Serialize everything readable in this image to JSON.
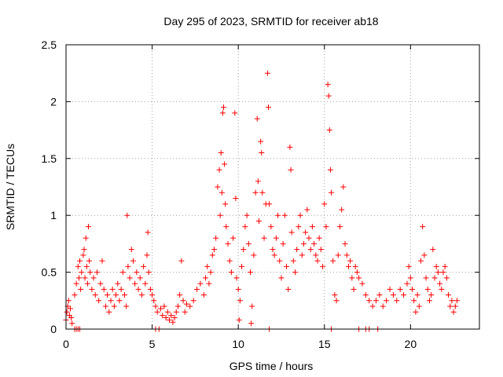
{
  "chart_data": {
    "type": "scatter",
    "title": "Day 295 of 2023, SRMTID for receiver ab18",
    "xlabel": "GPS time / hours",
    "ylabel": "SRMTID / TECUs",
    "xlim": [
      0,
      24
    ],
    "ylim": [
      0,
      2.5
    ],
    "xticks": [
      0,
      5,
      10,
      15,
      20
    ],
    "yticks": [
      0,
      0.5,
      1,
      1.5,
      2,
      2.5
    ],
    "xtick_labels": [
      "0",
      "5",
      "10",
      "15",
      "20"
    ],
    "ytick_labels": [
      "0",
      "0.5",
      "1",
      "1.5",
      "2",
      "2.5"
    ],
    "grid": true,
    "marker": "+",
    "series": [
      {
        "name": "ab18",
        "color": "#ff0000",
        "points": [
          [
            0.0,
            0.08
          ],
          [
            0.05,
            0.15
          ],
          [
            0.1,
            0.2
          ],
          [
            0.15,
            0.25
          ],
          [
            0.2,
            0.12
          ],
          [
            0.25,
            0.18
          ],
          [
            0.3,
            0.1
          ],
          [
            0.35,
            0.05
          ],
          [
            0.5,
            0.3
          ],
          [
            0.6,
            0.4
          ],
          [
            0.7,
            0.55
          ],
          [
            0.75,
            0.45
          ],
          [
            0.8,
            0.6
          ],
          [
            0.85,
            0.35
          ],
          [
            0.9,
            0.5
          ],
          [
            1.0,
            0.65
          ],
          [
            1.05,
            0.7
          ],
          [
            1.1,
            0.45
          ],
          [
            1.15,
            0.8
          ],
          [
            1.2,
            0.55
          ],
          [
            1.25,
            0.4
          ],
          [
            1.3,
            0.9
          ],
          [
            1.35,
            0.6
          ],
          [
            1.4,
            0.5
          ],
          [
            1.5,
            0.35
          ],
          [
            1.6,
            0.45
          ],
          [
            1.7,
            0.3
          ],
          [
            1.8,
            0.5
          ],
          [
            1.9,
            0.25
          ],
          [
            2.0,
            0.4
          ],
          [
            2.1,
            0.6
          ],
          [
            2.2,
            0.35
          ],
          [
            2.3,
            0.2
          ],
          [
            2.4,
            0.3
          ],
          [
            2.5,
            0.15
          ],
          [
            2.6,
            0.25
          ],
          [
            2.7,
            0.35
          ],
          [
            2.8,
            0.2
          ],
          [
            2.9,
            0.3
          ],
          [
            3.0,
            0.4
          ],
          [
            3.1,
            0.25
          ],
          [
            3.2,
            0.35
          ],
          [
            3.3,
            0.5
          ],
          [
            3.4,
            0.3
          ],
          [
            3.5,
            0.2
          ],
          [
            3.55,
            1.0
          ],
          [
            3.6,
            0.55
          ],
          [
            3.7,
            0.45
          ],
          [
            3.8,
            0.7
          ],
          [
            3.9,
            0.6
          ],
          [
            4.0,
            0.4
          ],
          [
            4.1,
            0.5
          ],
          [
            4.2,
            0.35
          ],
          [
            4.3,
            0.45
          ],
          [
            4.4,
            0.3
          ],
          [
            4.5,
            0.55
          ],
          [
            4.6,
            0.4
          ],
          [
            4.7,
            0.65
          ],
          [
            4.75,
            0.85
          ],
          [
            4.8,
            0.5
          ],
          [
            4.9,
            0.35
          ],
          [
            5.0,
            0.3
          ],
          [
            5.1,
            0.25
          ],
          [
            5.2,
            0.2
          ],
          [
            5.3,
            0.15
          ],
          [
            5.5,
            0.18
          ],
          [
            5.6,
            0.12
          ],
          [
            5.7,
            0.2
          ],
          [
            5.8,
            0.1
          ],
          [
            5.9,
            0.15
          ],
          [
            6.0,
            0.08
          ],
          [
            6.1,
            0.12
          ],
          [
            6.2,
            0.06
          ],
          [
            6.3,
            0.1
          ],
          [
            6.4,
            0.15
          ],
          [
            6.5,
            0.2
          ],
          [
            6.6,
            0.3
          ],
          [
            6.7,
            0.6
          ],
          [
            6.8,
            0.25
          ],
          [
            6.9,
            0.15
          ],
          [
            7.0,
            0.22
          ],
          [
            7.2,
            0.2
          ],
          [
            7.4,
            0.25
          ],
          [
            7.6,
            0.35
          ],
          [
            7.8,
            0.4
          ],
          [
            8.0,
            0.3
          ],
          [
            8.1,
            0.45
          ],
          [
            8.2,
            0.55
          ],
          [
            8.3,
            0.4
          ],
          [
            8.4,
            0.5
          ],
          [
            8.5,
            0.65
          ],
          [
            8.6,
            0.7
          ],
          [
            8.7,
            0.8
          ],
          [
            8.8,
            1.25
          ],
          [
            8.9,
            1.4
          ],
          [
            8.95,
            1.0
          ],
          [
            9.0,
            1.55
          ],
          [
            9.05,
            1.2
          ],
          [
            9.1,
            1.9
          ],
          [
            9.15,
            1.95
          ],
          [
            9.2,
            1.45
          ],
          [
            9.25,
            1.1
          ],
          [
            9.3,
            0.9
          ],
          [
            9.4,
            0.75
          ],
          [
            9.5,
            0.6
          ],
          [
            9.6,
            0.5
          ],
          [
            9.7,
            0.8
          ],
          [
            9.8,
            1.9
          ],
          [
            9.85,
            1.15
          ],
          [
            9.9,
            0.45
          ],
          [
            10.0,
            0.35
          ],
          [
            10.05,
            0.08
          ],
          [
            10.1,
            0.25
          ],
          [
            10.2,
            0.55
          ],
          [
            10.3,
            0.7
          ],
          [
            10.4,
            0.9
          ],
          [
            10.5,
            1.0
          ],
          [
            10.6,
            0.75
          ],
          [
            10.7,
            0.5
          ],
          [
            10.75,
            0.05
          ],
          [
            10.8,
            0.2
          ],
          [
            10.9,
            0.65
          ],
          [
            11.0,
            1.2
          ],
          [
            11.1,
            1.85
          ],
          [
            11.15,
            1.3
          ],
          [
            11.2,
            0.95
          ],
          [
            11.3,
            1.65
          ],
          [
            11.35,
            1.55
          ],
          [
            11.4,
            1.2
          ],
          [
            11.5,
            0.8
          ],
          [
            11.6,
            1.1
          ],
          [
            11.7,
            2.25
          ],
          [
            11.75,
            1.95
          ],
          [
            11.8,
            1.1
          ],
          [
            11.9,
            0.9
          ],
          [
            12.0,
            0.7
          ],
          [
            12.1,
            0.65
          ],
          [
            12.2,
            0.8
          ],
          [
            12.3,
            1.0
          ],
          [
            12.4,
            0.6
          ],
          [
            12.5,
            0.45
          ],
          [
            12.6,
            0.75
          ],
          [
            12.7,
            1.0
          ],
          [
            12.8,
            0.55
          ],
          [
            12.9,
            0.35
          ],
          [
            13.0,
            1.6
          ],
          [
            13.05,
            1.4
          ],
          [
            13.1,
            0.85
          ],
          [
            13.2,
            0.6
          ],
          [
            13.3,
            0.5
          ],
          [
            13.4,
            0.7
          ],
          [
            13.5,
            0.9
          ],
          [
            13.6,
            1.0
          ],
          [
            13.7,
            0.65
          ],
          [
            13.8,
            0.75
          ],
          [
            13.9,
            0.85
          ],
          [
            14.0,
            1.05
          ],
          [
            14.1,
            0.8
          ],
          [
            14.2,
            0.7
          ],
          [
            14.3,
            0.9
          ],
          [
            14.4,
            0.75
          ],
          [
            14.5,
            0.65
          ],
          [
            14.6,
            0.6
          ],
          [
            14.7,
            0.8
          ],
          [
            14.8,
            0.7
          ],
          [
            14.9,
            0.55
          ],
          [
            15.0,
            1.1
          ],
          [
            15.1,
            0.9
          ],
          [
            15.2,
            2.15
          ],
          [
            15.25,
            2.05
          ],
          [
            15.3,
            1.75
          ],
          [
            15.35,
            1.4
          ],
          [
            15.4,
            1.2
          ],
          [
            15.5,
            0.6
          ],
          [
            15.6,
            0.3
          ],
          [
            15.7,
            0.25
          ],
          [
            15.8,
            0.65
          ],
          [
            15.9,
            0.9
          ],
          [
            16.0,
            1.05
          ],
          [
            16.1,
            1.25
          ],
          [
            16.2,
            0.75
          ],
          [
            16.3,
            0.65
          ],
          [
            16.4,
            0.55
          ],
          [
            16.5,
            0.6
          ],
          [
            16.6,
            0.45
          ],
          [
            16.7,
            0.35
          ],
          [
            16.8,
            0.55
          ],
          [
            16.9,
            0.5
          ],
          [
            17.0,
            0.45
          ],
          [
            17.2,
            0.4
          ],
          [
            17.4,
            0.3
          ],
          [
            17.6,
            0.25
          ],
          [
            17.8,
            0.2
          ],
          [
            18.0,
            0.25
          ],
          [
            18.2,
            0.3
          ],
          [
            18.4,
            0.2
          ],
          [
            18.6,
            0.25
          ],
          [
            18.8,
            0.35
          ],
          [
            19.0,
            0.3
          ],
          [
            19.2,
            0.25
          ],
          [
            19.4,
            0.35
          ],
          [
            19.6,
            0.3
          ],
          [
            19.8,
            0.4
          ],
          [
            19.9,
            0.55
          ],
          [
            20.0,
            0.45
          ],
          [
            20.1,
            0.35
          ],
          [
            20.2,
            0.25
          ],
          [
            20.3,
            0.15
          ],
          [
            20.4,
            0.3
          ],
          [
            20.5,
            0.2
          ],
          [
            20.6,
            0.6
          ],
          [
            20.7,
            0.9
          ],
          [
            20.8,
            0.65
          ],
          [
            20.9,
            0.45
          ],
          [
            21.0,
            0.35
          ],
          [
            21.1,
            0.25
          ],
          [
            21.2,
            0.3
          ],
          [
            21.3,
            0.7
          ],
          [
            21.4,
            0.45
          ],
          [
            21.5,
            0.55
          ],
          [
            21.6,
            0.5
          ],
          [
            21.7,
            0.4
          ],
          [
            21.8,
            0.35
          ],
          [
            21.9,
            0.5
          ],
          [
            22.0,
            0.55
          ],
          [
            22.1,
            0.45
          ],
          [
            22.2,
            0.3
          ],
          [
            22.3,
            0.2
          ],
          [
            22.4,
            0.25
          ],
          [
            22.5,
            0.15
          ],
          [
            22.6,
            0.2
          ],
          [
            22.7,
            0.25
          ],
          [
            0.5,
            0.0
          ],
          [
            0.6,
            0.0
          ],
          [
            0.7,
            0.0
          ],
          [
            0.8,
            0.0
          ],
          [
            5.2,
            0.0
          ],
          [
            5.4,
            0.0
          ],
          [
            11.8,
            0.0
          ],
          [
            15.4,
            0.0
          ],
          [
            17.0,
            0.0
          ],
          [
            17.4,
            0.0
          ],
          [
            17.6,
            0.0
          ],
          [
            18.1,
            0.0
          ]
        ]
      }
    ]
  }
}
